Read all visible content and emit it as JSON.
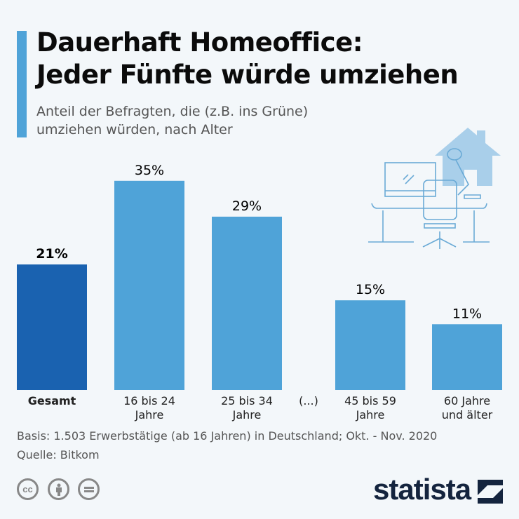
{
  "header": {
    "title_line1": "Dauerhaft Homeoffice:",
    "title_line2": "Jeder Fünfte würde umziehen",
    "subtitle_line1": "Anteil der Befragten, die (z.B. ins Grüne)",
    "subtitle_line2": "umziehen würden, nach Alter"
  },
  "chart_data": {
    "type": "bar",
    "categories": [
      [
        "Gesamt"
      ],
      [
        "16 bis 24",
        "Jahre"
      ],
      [
        "25 bis 34",
        "Jahre"
      ],
      [
        "(...)"
      ],
      [
        "45 bis 59",
        "Jahre"
      ],
      [
        "60 Jahre",
        "und älter"
      ]
    ],
    "values": [
      21,
      35,
      29,
      null,
      15,
      11
    ],
    "data_labels": [
      "21%",
      "35%",
      "29%",
      "",
      "15%",
      "11%"
    ],
    "unit": "%",
    "colors": {
      "highlight": "#1a62b0",
      "default": "#4fa3d8"
    },
    "highlight_category": "Gesamt",
    "grid": false,
    "title": "Dauerhaft Homeoffice: Jeder Fünfte würde umziehen"
  },
  "footer": {
    "basis": "Basis: 1.503 Erwerbstätige (ab 16 Jahren) in Deutschland; Okt. - Nov. 2020",
    "source": "Quelle: Bitkom",
    "license_icons": [
      "cc-icon",
      "by-icon",
      "nd-icon"
    ],
    "cc_text": "cc",
    "brand": "statista"
  }
}
